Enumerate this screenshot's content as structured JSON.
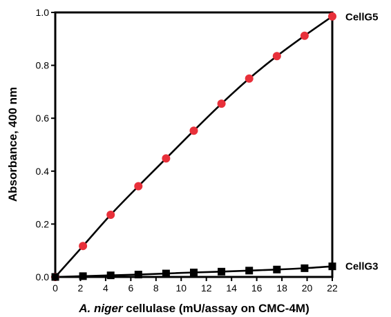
{
  "chart_data": {
    "type": "scatter",
    "xlabel_italic": "A. niger",
    "xlabel_rest": " cellulase (mU/assay on CMC-4M)",
    "ylabel": "Absorbance, 400 nm",
    "xlim": [
      0,
      22
    ],
    "ylim": [
      0,
      1.0
    ],
    "xticks": [
      0,
      2,
      4,
      6,
      8,
      10,
      12,
      14,
      16,
      18,
      20,
      22
    ],
    "yticks": [
      "0.0",
      "0.2",
      "0.4",
      "0.6",
      "0.8",
      "1.0"
    ],
    "grid": false,
    "series": [
      {
        "name": "CellG5",
        "marker": "circle",
        "color": "#e8303a",
        "x": [
          0,
          2.2,
          4.4,
          6.6,
          8.8,
          11.0,
          13.2,
          15.4,
          17.6,
          19.8,
          22.0
        ],
        "y": [
          0.0,
          0.117,
          0.235,
          0.343,
          0.448,
          0.553,
          0.655,
          0.75,
          0.835,
          0.912,
          0.985
        ]
      },
      {
        "name": "CellG3",
        "marker": "square",
        "color": "#000000",
        "x": [
          0,
          2.2,
          4.4,
          6.6,
          8.8,
          11.0,
          13.2,
          15.4,
          17.6,
          19.8,
          22.0
        ],
        "y": [
          0.0,
          0.003,
          0.006,
          0.009,
          0.013,
          0.017,
          0.02,
          0.024,
          0.028,
          0.033,
          0.04
        ]
      }
    ]
  }
}
